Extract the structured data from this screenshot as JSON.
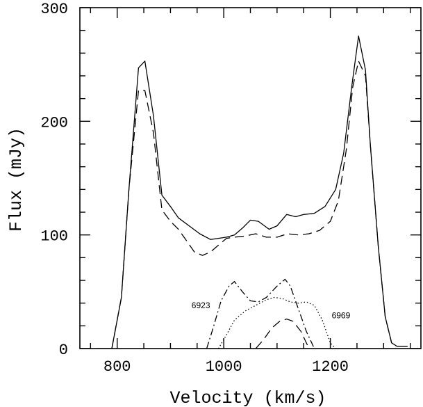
{
  "chart_data": {
    "type": "line",
    "title": "",
    "xlabel": "Velocity (km/s)",
    "ylabel": "Flux (mJy)",
    "xlim": [
      730,
      1370
    ],
    "ylim": [
      0,
      300
    ],
    "x_ticks": [
      800,
      1000,
      1200
    ],
    "y_ticks": [
      0,
      100,
      200,
      300
    ],
    "x_tick_labels": [
      "800",
      "1000",
      "1200"
    ],
    "y_tick_labels": [
      "0",
      "100",
      "200",
      "300"
    ],
    "x_minor_step": 50,
    "y_minor_step": 20,
    "grid": false,
    "legend": "none",
    "series": [
      {
        "style": "solid",
        "color": "#000000",
        "points": [
          [
            760,
            0
          ],
          [
            790,
            0
          ],
          [
            808,
            45
          ],
          [
            822,
            140
          ],
          [
            840,
            247
          ],
          [
            852,
            253
          ],
          [
            868,
            205
          ],
          [
            884,
            135
          ],
          [
            900,
            125
          ],
          [
            915,
            115
          ],
          [
            935,
            108
          ],
          [
            955,
            101
          ],
          [
            975,
            96
          ],
          [
            990,
            97
          ],
          [
            1005,
            98
          ],
          [
            1020,
            100
          ],
          [
            1035,
            106
          ],
          [
            1050,
            113
          ],
          [
            1065,
            112
          ],
          [
            1085,
            105
          ],
          [
            1100,
            108
          ],
          [
            1118,
            118
          ],
          [
            1135,
            116
          ],
          [
            1150,
            118
          ],
          [
            1170,
            119
          ],
          [
            1190,
            125
          ],
          [
            1210,
            140
          ],
          [
            1225,
            172
          ],
          [
            1240,
            230
          ],
          [
            1253,
            275
          ],
          [
            1266,
            245
          ],
          [
            1275,
            180
          ],
          [
            1290,
            90
          ],
          [
            1303,
            28
          ],
          [
            1315,
            5
          ],
          [
            1325,
            2
          ],
          [
            1345,
            2
          ]
        ]
      },
      {
        "style": "dashed",
        "color": "#000000",
        "points": [
          [
            790,
            0
          ],
          [
            808,
            45
          ],
          [
            822,
            140
          ],
          [
            840,
            227
          ],
          [
            852,
            227
          ],
          [
            868,
            190
          ],
          [
            884,
            122
          ],
          [
            900,
            112
          ],
          [
            915,
            105
          ],
          [
            930,
            95
          ],
          [
            945,
            85
          ],
          [
            960,
            82
          ],
          [
            975,
            85
          ],
          [
            990,
            91
          ],
          [
            1005,
            97
          ],
          [
            1020,
            98
          ],
          [
            1040,
            99
          ],
          [
            1060,
            101
          ],
          [
            1080,
            98
          ],
          [
            1100,
            98
          ],
          [
            1120,
            101
          ],
          [
            1140,
            100
          ],
          [
            1160,
            101
          ],
          [
            1180,
            104
          ],
          [
            1200,
            112
          ],
          [
            1215,
            130
          ],
          [
            1230,
            175
          ],
          [
            1242,
            230
          ],
          [
            1253,
            253
          ],
          [
            1266,
            240
          ],
          [
            1275,
            180
          ],
          [
            1290,
            90
          ],
          [
            1303,
            28
          ],
          [
            1315,
            5
          ]
        ]
      },
      {
        "name": "6923",
        "style": "dash-dot",
        "color": "#000000",
        "points": [
          [
            968,
            0
          ],
          [
            980,
            18
          ],
          [
            995,
            42
          ],
          [
            1010,
            55
          ],
          [
            1020,
            59
          ],
          [
            1035,
            50
          ],
          [
            1050,
            42
          ],
          [
            1065,
            41
          ],
          [
            1080,
            45
          ],
          [
            1100,
            55
          ],
          [
            1115,
            61
          ],
          [
            1125,
            55
          ],
          [
            1140,
            35
          ],
          [
            1155,
            15
          ],
          [
            1170,
            0
          ]
        ]
      },
      {
        "style": "dashed",
        "color": "#000000",
        "points": [
          [
            1060,
            0
          ],
          [
            1075,
            8
          ],
          [
            1090,
            18
          ],
          [
            1105,
            24
          ],
          [
            1118,
            26
          ],
          [
            1130,
            24
          ],
          [
            1145,
            15
          ],
          [
            1160,
            0
          ]
        ]
      },
      {
        "name": "6969",
        "style": "dotted",
        "color": "#000000",
        "points": [
          [
            990,
            0
          ],
          [
            1005,
            12
          ],
          [
            1020,
            25
          ],
          [
            1040,
            33
          ],
          [
            1060,
            38
          ],
          [
            1080,
            43
          ],
          [
            1095,
            45
          ],
          [
            1110,
            44
          ],
          [
            1125,
            41
          ],
          [
            1140,
            40
          ],
          [
            1155,
            41
          ],
          [
            1170,
            38
          ],
          [
            1185,
            25
          ],
          [
            1200,
            5
          ],
          [
            1210,
            0
          ]
        ]
      }
    ],
    "annotations": [
      {
        "text": "6923",
        "x": 957,
        "y": 38
      },
      {
        "text": "6969",
        "x": 1220,
        "y": 29
      }
    ]
  }
}
